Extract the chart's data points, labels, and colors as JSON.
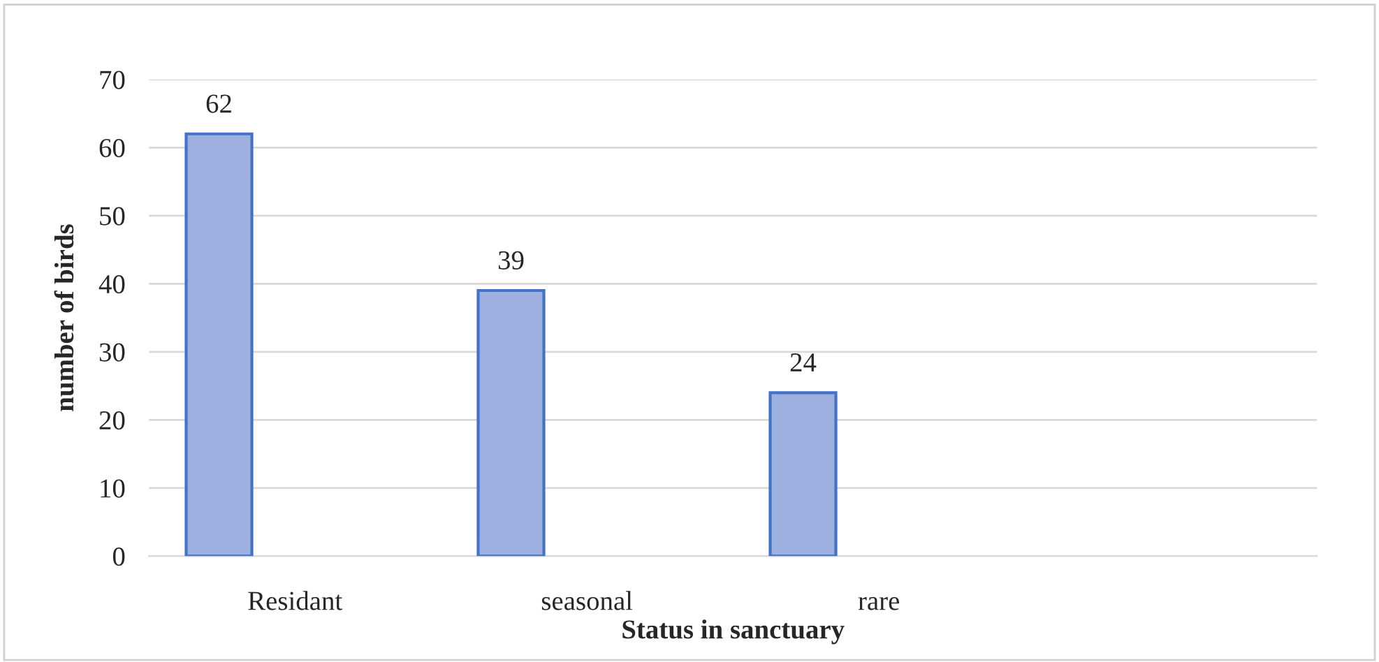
{
  "chart_data": {
    "type": "bar",
    "categories": [
      "Residant",
      "seasonal",
      "rare",
      null
    ],
    "values": [
      62,
      39,
      24,
      null
    ],
    "color": "#9db0e0",
    "xlabel": "Status in sanctuary",
    "ylabel": "number of birds",
    "ylim": [
      0,
      70
    ],
    "yticks": [
      0,
      10,
      20,
      30,
      40,
      50,
      60,
      70
    ],
    "grid": "y",
    "data_labels": true
  }
}
